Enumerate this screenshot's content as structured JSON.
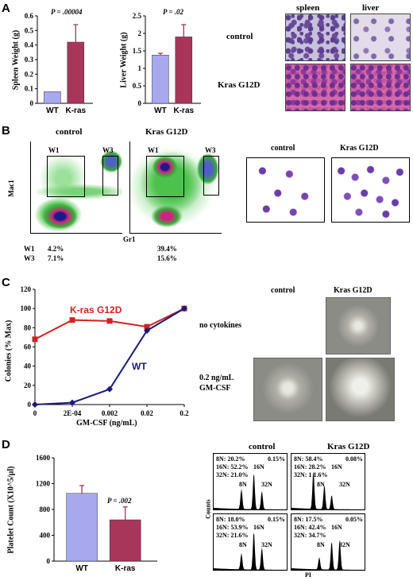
{
  "panel_A": {
    "letter": "A",
    "spleen_chart": {
      "ylabel": "Spleen Weight (g)",
      "pvalue": "P = .00004",
      "yticks": [
        "0",
        "0.1",
        "0.2",
        "0.3",
        "0.4",
        "0.5",
        "0.6"
      ]
    },
    "liver_chart": {
      "ylabel": "Liver Weight (g)",
      "pvalue": "P = .02",
      "yticks": [
        "0",
        "0.5",
        "1",
        "1.5",
        "2",
        "2.5"
      ]
    },
    "histology": {
      "col_spleen": "spleen",
      "col_liver": "liver",
      "row_control": "control",
      "row_kras": "Kras G12D"
    }
  },
  "panel_B": {
    "letter": "B",
    "flow_control_title": "control",
    "flow_kras_title": "Kras G12D",
    "gate_w1": "W1",
    "gate_w3": "W3",
    "y_axis": "Mac1",
    "x_axis": "Gr1",
    "stats": [
      {
        "gate": "W1",
        "control": "4.2%",
        "kras": "39.4%"
      },
      {
        "gate": "W3",
        "control": "7.1%",
        "kras": "15.6%"
      }
    ],
    "cyto_control_title": "control",
    "cyto_kras_title": "Kras G12D"
  },
  "panel_C": {
    "letter": "C",
    "ylabel": "Colonies (% Max)",
    "xlabel": "GM-CSF (ng/mL)",
    "yticks": [
      "0",
      "20",
      "40",
      "60",
      "80",
      "100",
      "120"
    ],
    "xticks": [
      "0",
      "2E-04",
      "0.002",
      "0.02",
      "0.2"
    ],
    "label_kras": "K-ras G12D",
    "label_wt": "WT",
    "col_control": "control",
    "col_kras": "Kras G12D",
    "row_no_cyt": "no cytokines",
    "row_gm_line1": "0.2 ng/mL",
    "row_gm_line2": "GM-CSF",
    "colors": {
      "kras": "#d62020",
      "wt": "#1a1a7a"
    }
  },
  "panel_D": {
    "letter": "D",
    "ylabel": "Platelet Count (X10^5/µl)",
    "pvalue": "P = .002",
    "yticks": [
      "0",
      "400",
      "800",
      "1200",
      "1600"
    ],
    "hist_control_title": "control",
    "hist_kras_title": "Kras G12D",
    "hist_ylabel": "Counts",
    "hist_xlabel": "PI",
    "hist": [
      {
        "l1": "8N: 20.2%",
        "l2": "16N: 52.2%",
        "l3": "32N: 21.0%",
        "right": "0.15%"
      },
      {
        "l1": "8N: 58.4%",
        "l2": "16N: 28.2%",
        "l3": "32N: 1 1.6%",
        "right": "0.08%"
      },
      {
        "l1": "8N: 18.0%",
        "l2": "16N: 53.9%",
        "l3": "32N: 21.6%",
        "right": "0.15%"
      },
      {
        "l1": "8N: 17.5%",
        "l2": "16N: 42.4%",
        "l3": "32N: 34.7%",
        "right": "0.05%"
      }
    ],
    "peak_8n": "8N",
    "peak_16n": "16N",
    "peak_32n": "32N"
  },
  "chart_data": [
    {
      "type": "bar",
      "categories": [
        "WT",
        "K-ras"
      ],
      "values": [
        0.08,
        0.42
      ],
      "errors": [
        0,
        0.12
      ],
      "ylabel": "Spleen Weight (g)",
      "ylim": [
        0,
        0.6
      ],
      "colors": [
        "#a8a8ee",
        "#a8355a"
      ]
    },
    {
      "type": "bar",
      "categories": [
        "WT",
        "K-ras"
      ],
      "values": [
        1.38,
        1.9
      ],
      "errors": [
        0.05,
        0.35
      ],
      "ylabel": "Liver Weight (g)",
      "ylim": [
        0,
        2.5
      ],
      "colors": [
        "#a8a8ee",
        "#a8355a"
      ]
    },
    {
      "type": "line",
      "x": [
        "0",
        "2E-04",
        "0.002",
        "0.02",
        "0.2"
      ],
      "series": [
        {
          "name": "K-ras G12D",
          "values": [
            68,
            88,
            87,
            81,
            100
          ]
        },
        {
          "name": "WT",
          "values": [
            0,
            2,
            16,
            77,
            100
          ]
        }
      ],
      "ylabel": "Colonies (% Max)",
      "xlabel": "GM-CSF (ng/mL)",
      "ylim": [
        0,
        120
      ]
    },
    {
      "type": "bar",
      "categories": [
        "WT",
        "K-ras"
      ],
      "values": [
        1050,
        640
      ],
      "errors": [
        120,
        200
      ],
      "ylabel": "Platelet Count (X10^5/µl)",
      "ylim": [
        0,
        1600
      ],
      "colors": [
        "#a8a8ee",
        "#a8355a"
      ]
    }
  ]
}
